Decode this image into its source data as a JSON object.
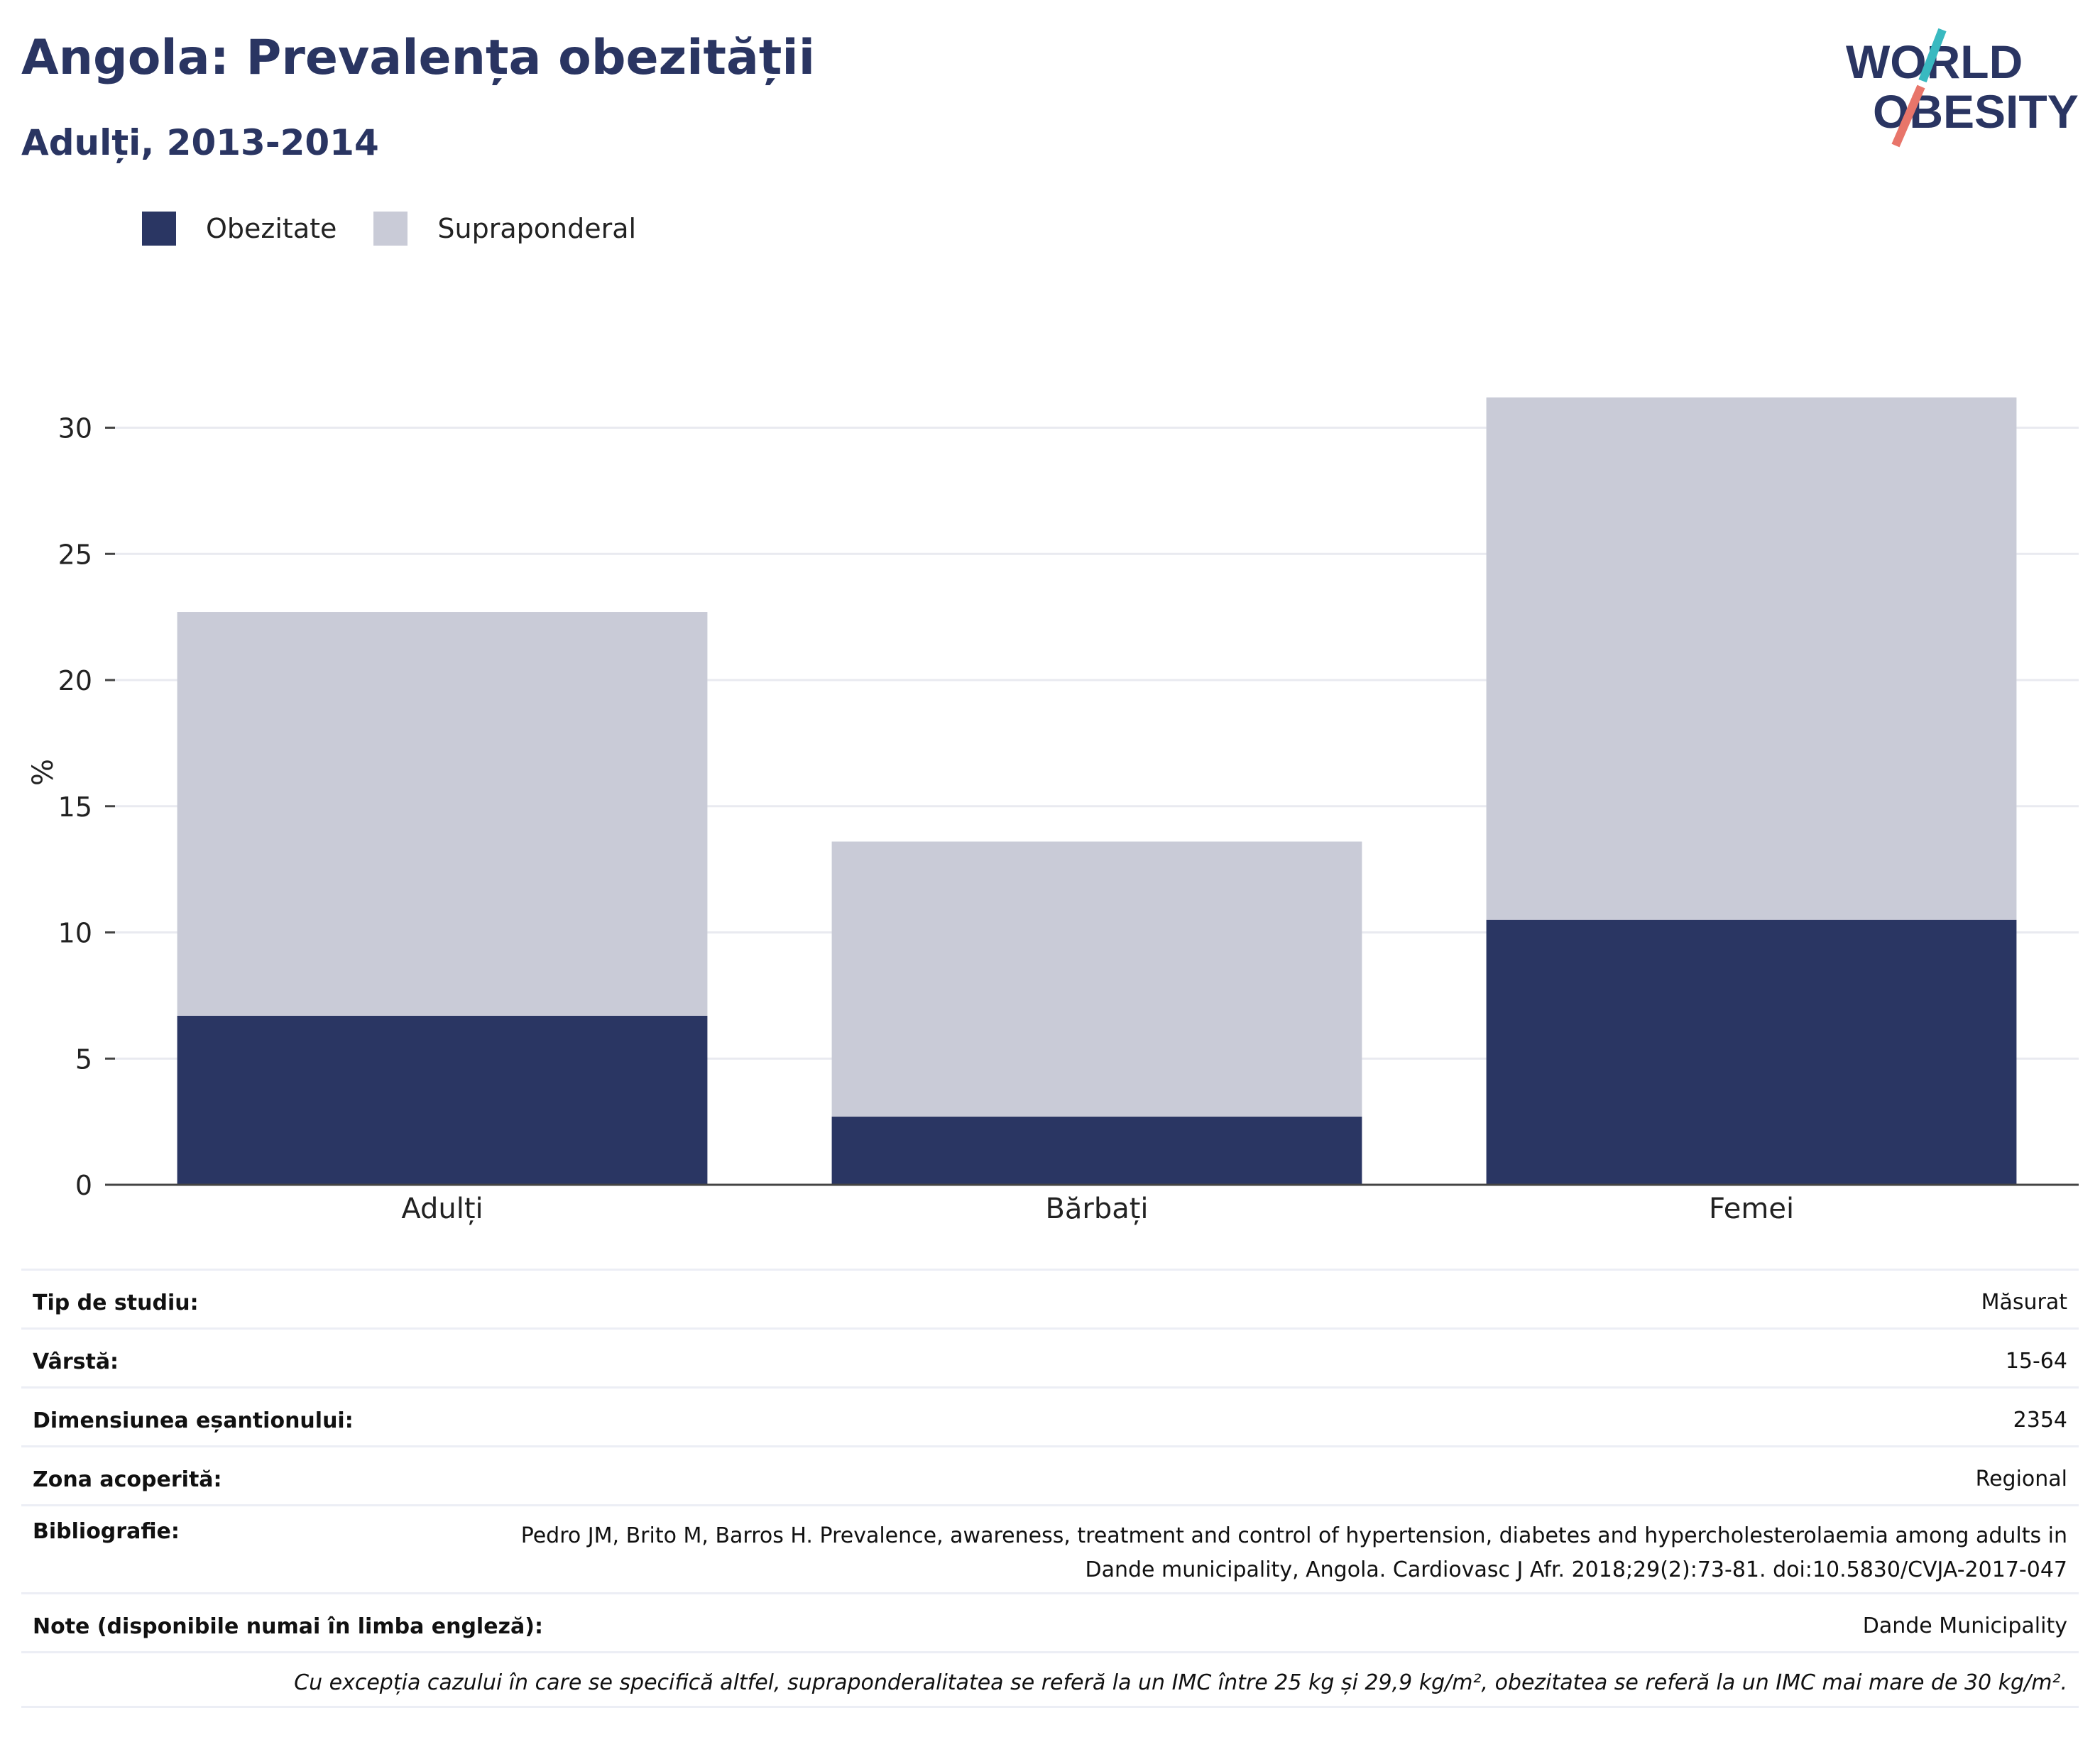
{
  "header": {
    "title": "Angola: Prevalența obezității",
    "subtitle": "Adulți, 2013-2014"
  },
  "logo": {
    "line1": "WORLD",
    "line2": "OBESITY",
    "accent_teal": "#39b9c0",
    "accent_red": "#e8756a"
  },
  "legend": [
    {
      "label": "Obezitate",
      "color": "#2a3663"
    },
    {
      "label": "Supraponderal",
      "color": "#c9cbd7"
    }
  ],
  "chart_data": {
    "type": "bar",
    "stacked": true,
    "categories": [
      "Adulți",
      "Bărbați",
      "Femei"
    ],
    "series": [
      {
        "name": "Obezitate",
        "values": [
          6.7,
          2.7,
          10.5
        ],
        "color": "#2a3663"
      },
      {
        "name": "Supraponderal",
        "values": [
          16.0,
          10.9,
          20.7
        ],
        "color": "#c9cbd7"
      }
    ],
    "ylabel": "%",
    "ylim": [
      0,
      32
    ],
    "yticks": [
      0,
      5,
      10,
      15,
      20,
      25,
      30
    ],
    "grid": true,
    "legend_position": "top-left"
  },
  "meta": [
    {
      "key": "Tip de studiu:",
      "value": "Măsurat"
    },
    {
      "key": "Vârstă:",
      "value": "15-64"
    },
    {
      "key": "Dimensiunea eșantionului:",
      "value": "2354"
    },
    {
      "key": "Zona acoperită:",
      "value": "Regional"
    },
    {
      "key": "Bibliografie:",
      "value": "Pedro JM, Brito M, Barros H. Prevalence, awareness, treatment and control of hypertension, diabetes and hypercholesterolaemia among adults in Dande municipality, Angola. Cardiovasc J Afr. 2018;29(2):73-81. doi:10.5830/CVJA-2017-047"
    },
    {
      "key": "Note (disponibile numai în limba engleză):",
      "value": "Dande Municipality"
    }
  ],
  "footnote": "Cu excepția cazului în care se specifică altfel, supraponderalitatea se referă la un IMC între 25 kg și 29,9 kg/m², obezitatea se referă la un IMC mai mare de 30 kg/m²."
}
